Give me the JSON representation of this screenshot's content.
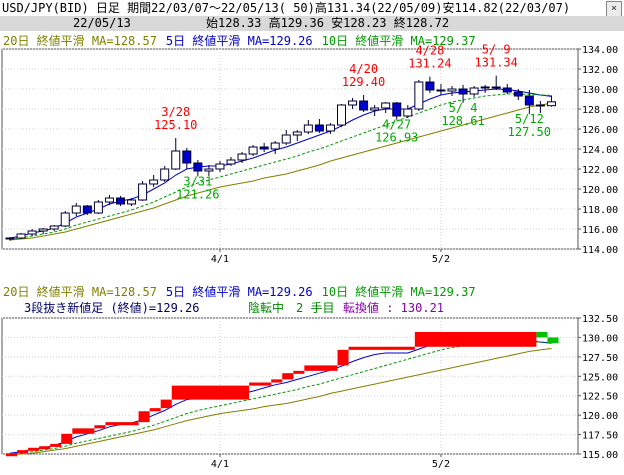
{
  "header": {
    "title": "USD/JPY(BID) 日足 期間22/03/07～22/05/13( 50)高131.34(22/05/09)安114.82(22/03/07)",
    "date": "22/05/13",
    "ohlc": "始128.33 高129.36 安128.23 終128.72",
    "close_button": "×"
  },
  "colors": {
    "up_candle": "#ffffff",
    "down_candle": "#0000cc",
    "ma20": "#808000",
    "ma5": "#0000cc",
    "ma10": "#009900",
    "sanbon_up": "#ff0000",
    "sanbon_down": "#00c000",
    "annotation_high": "#ff0000",
    "annotation_low": "#00aa00"
  },
  "top_chart": {
    "legend": [
      {
        "label": "20日 終値平滑 MA=128.57",
        "color": "#808000"
      },
      {
        "label": "5日 終値平滑 MA=129.26",
        "color": "#0000cc"
      },
      {
        "label": "10日 終値平滑 MA=129.37",
        "color": "#009900"
      }
    ]
  },
  "bottom_chart": {
    "legend": [
      {
        "label": "20日 終値平滑 MA=128.57",
        "color": "#808000"
      },
      {
        "label": "5日 終値平滑 MA=129.26",
        "color": "#0000cc"
      },
      {
        "label": "10日 終値平滑 MA=129.37",
        "color": "#009900"
      }
    ],
    "sanbon_text": "3段抜き新値足 (終値)=129.26",
    "status_turn": "陰転中",
    "status_count": "2 手目",
    "status_price": "転換値 : 130.21"
  },
  "chart_data": [
    {
      "type": "candlestick",
      "title": "USD/JPY(BID) 日足",
      "x_tick_labels": [
        "4/1",
        "5/2"
      ],
      "x_tick_indices": [
        19,
        39
      ],
      "ylim": [
        114,
        134
      ],
      "y_tick_labels": [
        "114.00",
        "116.00",
        "118.00",
        "120.00",
        "122.00",
        "124.00",
        "126.00",
        "128.00",
        "130.00",
        "132.00",
        "134.00"
      ],
      "candles": [
        [
          115.0,
          115.2,
          114.82,
          115.1
        ],
        [
          115.1,
          115.6,
          115.0,
          115.5
        ],
        [
          115.5,
          116.0,
          115.3,
          115.8
        ],
        [
          115.8,
          116.1,
          115.5,
          116.0
        ],
        [
          116.0,
          116.4,
          115.8,
          116.3
        ],
        [
          116.3,
          117.8,
          116.2,
          117.6
        ],
        [
          117.6,
          118.6,
          117.3,
          118.3
        ],
        [
          118.3,
          118.4,
          117.4,
          117.6
        ],
        [
          117.6,
          118.9,
          117.5,
          118.7
        ],
        [
          118.7,
          119.4,
          118.4,
          119.1
        ],
        [
          119.1,
          119.3,
          118.3,
          118.5
        ],
        [
          118.5,
          119.1,
          118.3,
          118.9
        ],
        [
          118.9,
          120.8,
          118.8,
          120.5
        ],
        [
          120.5,
          121.4,
          120.2,
          120.9
        ],
        [
          120.9,
          122.3,
          120.7,
          122.0
        ],
        [
          122.0,
          125.1,
          121.9,
          123.8
        ],
        [
          123.8,
          124.1,
          122.0,
          122.6
        ],
        [
          122.6,
          122.9,
          121.26,
          121.8
        ],
        [
          121.8,
          122.4,
          121.3,
          122.0
        ],
        [
          122.0,
          122.8,
          121.7,
          122.5
        ],
        [
          122.5,
          123.2,
          122.3,
          122.9
        ],
        [
          122.9,
          123.7,
          122.6,
          123.5
        ],
        [
          123.5,
          124.4,
          123.3,
          124.2
        ],
        [
          124.2,
          124.6,
          123.7,
          124.0
        ],
        [
          124.0,
          124.8,
          123.5,
          124.6
        ],
        [
          124.6,
          125.9,
          124.4,
          125.4
        ],
        [
          125.4,
          125.9,
          124.8,
          125.7
        ],
        [
          125.7,
          126.9,
          125.5,
          126.4
        ],
        [
          126.4,
          127.0,
          125.6,
          125.8
        ],
        [
          125.8,
          126.6,
          125.5,
          126.4
        ],
        [
          126.4,
          128.5,
          126.2,
          128.4
        ],
        [
          128.4,
          129.1,
          128.0,
          128.8
        ],
        [
          128.8,
          129.4,
          127.7,
          127.9
        ],
        [
          127.9,
          128.4,
          127.3,
          128.1
        ],
        [
          128.1,
          128.7,
          127.6,
          128.6
        ],
        [
          128.6,
          128.7,
          126.93,
          127.3
        ],
        [
          127.3,
          128.4,
          127.1,
          128.0
        ],
        [
          128.0,
          130.9,
          127.8,
          130.7
        ],
        [
          130.7,
          131.24,
          129.6,
          129.9
        ],
        [
          129.9,
          130.5,
          129.4,
          129.8
        ],
        [
          129.8,
          130.3,
          129.3,
          130.0
        ],
        [
          130.0,
          130.4,
          128.61,
          129.5
        ],
        [
          129.5,
          130.3,
          129.2,
          130.1
        ],
        [
          130.1,
          130.4,
          129.6,
          130.2
        ],
        [
          130.2,
          131.34,
          129.9,
          130.1
        ],
        [
          130.1,
          130.5,
          129.5,
          129.7
        ],
        [
          129.7,
          130.0,
          128.9,
          129.3
        ],
        [
          129.3,
          129.9,
          127.5,
          128.4
        ],
        [
          128.4,
          128.8,
          127.6,
          128.33
        ],
        [
          128.33,
          129.36,
          128.23,
          128.72
        ]
      ],
      "series": [
        {
          "name": "20日 終値平滑",
          "values": [
            114.9,
            115.0,
            115.1,
            115.3,
            115.5,
            115.7,
            116.0,
            116.3,
            116.6,
            116.9,
            117.2,
            117.5,
            117.8,
            118.1,
            118.5,
            118.9,
            119.3,
            119.6,
            119.9,
            120.2,
            120.4,
            120.6,
            120.8,
            121.1,
            121.3,
            121.5,
            121.8,
            122.1,
            122.4,
            122.8,
            123.1,
            123.4,
            123.7,
            124.0,
            124.3,
            124.6,
            124.9,
            125.2,
            125.5,
            125.8,
            126.1,
            126.4,
            126.7,
            127.0,
            127.3,
            127.6,
            127.9,
            128.2,
            128.4,
            128.57
          ]
        },
        {
          "name": "5日 終値平滑",
          "values": [
            115.1,
            115.3,
            115.6,
            115.8,
            116.1,
            116.6,
            117.2,
            117.6,
            118.0,
            118.5,
            118.8,
            119.0,
            119.4,
            120.0,
            120.6,
            121.4,
            122.0,
            122.2,
            122.3,
            122.3,
            122.5,
            122.8,
            123.1,
            123.5,
            123.9,
            124.2,
            124.6,
            125.0,
            125.4,
            125.8,
            126.3,
            126.9,
            127.4,
            127.8,
            128.0,
            128.0,
            128.0,
            128.5,
            129.0,
            129.4,
            129.6,
            129.7,
            129.8,
            129.9,
            130.0,
            129.95,
            129.8,
            129.6,
            129.4,
            129.26
          ]
        },
        {
          "name": "10日 終値平滑",
          "values": [
            115.0,
            115.1,
            115.3,
            115.5,
            115.7,
            116.0,
            116.4,
            116.7,
            117.0,
            117.3,
            117.6,
            117.9,
            118.3,
            118.7,
            119.2,
            119.7,
            120.2,
            120.6,
            120.9,
            121.2,
            121.5,
            121.8,
            122.1,
            122.4,
            122.7,
            123.0,
            123.3,
            123.7,
            124.0,
            124.4,
            124.8,
            125.2,
            125.6,
            126.0,
            126.4,
            126.8,
            127.2,
            127.6,
            128.0,
            128.4,
            128.7,
            128.9,
            129.1,
            129.3,
            129.4,
            129.5,
            129.5,
            129.45,
            129.4,
            129.37
          ]
        }
      ],
      "annotations": [
        {
          "date": "3/28",
          "value": "125.10",
          "kind": "high",
          "index": 15
        },
        {
          "date": "3/31",
          "value": "121.26",
          "kind": "low",
          "index": 17
        },
        {
          "date": "4/20",
          "value": "129.40",
          "kind": "high",
          "index": 32
        },
        {
          "date": "4/27",
          "value": "126.93",
          "kind": "low",
          "index": 35
        },
        {
          "date": "4/28",
          "value": "131.24",
          "kind": "high",
          "index": 38
        },
        {
          "date": "5/ 4",
          "value": "128.61",
          "kind": "low",
          "index": 41
        },
        {
          "date": "5/ 9",
          "value": "131.34",
          "kind": "high",
          "index": 44
        },
        {
          "date": "5/12",
          "value": "127.50",
          "kind": "low",
          "index": 47
        }
      ]
    },
    {
      "type": "sanbon-shinneashi",
      "title": "3段抜き新値足 (終値)",
      "x_tick_labels": [
        "4/1",
        "5/2"
      ],
      "x_tick_indices": [
        19,
        39
      ],
      "ylim": [
        115,
        132.5
      ],
      "y_tick_labels": [
        "115.00",
        "117.50",
        "120.00",
        "122.50",
        "125.00",
        "127.50",
        "130.00",
        "132.50"
      ],
      "bricks": [
        {
          "from": 114.82,
          "to": 115.1,
          "dir": "up",
          "index": 0
        },
        {
          "from": 115.1,
          "to": 115.5,
          "dir": "up",
          "index": 1
        },
        {
          "from": 115.5,
          "to": 115.8,
          "dir": "up",
          "index": 2
        },
        {
          "from": 115.8,
          "to": 116.0,
          "dir": "up",
          "index": 3
        },
        {
          "from": 116.0,
          "to": 116.3,
          "dir": "up",
          "index": 4
        },
        {
          "from": 116.3,
          "to": 117.6,
          "dir": "up",
          "index": 5
        },
        {
          "from": 117.6,
          "to": 118.3,
          "dir": "up",
          "index": 6
        },
        {
          "from": 118.3,
          "to": 118.7,
          "dir": "up",
          "index": 8
        },
        {
          "from": 118.7,
          "to": 119.1,
          "dir": "up",
          "index": 9
        },
        {
          "from": 119.1,
          "to": 120.5,
          "dir": "up",
          "index": 12
        },
        {
          "from": 120.5,
          "to": 120.9,
          "dir": "up",
          "index": 13
        },
        {
          "from": 120.9,
          "to": 122.0,
          "dir": "up",
          "index": 14
        },
        {
          "from": 122.0,
          "to": 123.8,
          "dir": "up",
          "index": 15
        },
        {
          "from": 123.8,
          "to": 124.2,
          "dir": "up",
          "index": 22
        },
        {
          "from": 124.2,
          "to": 124.6,
          "dir": "up",
          "index": 24
        },
        {
          "from": 124.6,
          "to": 125.4,
          "dir": "up",
          "index": 25
        },
        {
          "from": 125.4,
          "to": 125.7,
          "dir": "up",
          "index": 26
        },
        {
          "from": 125.7,
          "to": 126.4,
          "dir": "up",
          "index": 27
        },
        {
          "from": 126.4,
          "to": 128.4,
          "dir": "up",
          "index": 30
        },
        {
          "from": 128.4,
          "to": 128.8,
          "dir": "up",
          "index": 31
        },
        {
          "from": 128.8,
          "to": 130.7,
          "dir": "up",
          "index": 37
        },
        {
          "from": 130.7,
          "to": 130.0,
          "dir": "down",
          "index": 48
        },
        {
          "from": 130.0,
          "to": 129.26,
          "dir": "down",
          "index": 49
        }
      ],
      "series": [
        {
          "name": "20日 終値平滑",
          "values": [
            114.9,
            115.0,
            115.1,
            115.3,
            115.5,
            115.7,
            116.0,
            116.3,
            116.6,
            116.9,
            117.2,
            117.5,
            117.8,
            118.1,
            118.5,
            118.9,
            119.3,
            119.6,
            119.9,
            120.2,
            120.4,
            120.6,
            120.8,
            121.1,
            121.3,
            121.5,
            121.8,
            122.1,
            122.4,
            122.8,
            123.1,
            123.4,
            123.7,
            124.0,
            124.3,
            124.6,
            124.9,
            125.2,
            125.5,
            125.8,
            126.1,
            126.4,
            126.7,
            127.0,
            127.3,
            127.6,
            127.9,
            128.2,
            128.4,
            128.57
          ]
        },
        {
          "name": "5日 終値平滑",
          "values": [
            115.1,
            115.3,
            115.6,
            115.8,
            116.1,
            116.6,
            117.2,
            117.6,
            118.0,
            118.5,
            118.8,
            119.0,
            119.4,
            120.0,
            120.6,
            121.4,
            122.0,
            122.2,
            122.3,
            122.3,
            122.5,
            122.8,
            123.1,
            123.5,
            123.9,
            124.2,
            124.6,
            125.0,
            125.4,
            125.8,
            126.3,
            126.9,
            127.4,
            127.8,
            128.0,
            128.0,
            128.0,
            128.5,
            129.0,
            129.4,
            129.6,
            129.7,
            129.8,
            129.9,
            130.0,
            129.95,
            129.8,
            129.6,
            129.4,
            129.26
          ]
        },
        {
          "name": "10日 終値平滑",
          "values": [
            115.0,
            115.1,
            115.3,
            115.5,
            115.7,
            116.0,
            116.4,
            116.7,
            117.0,
            117.3,
            117.6,
            117.9,
            118.3,
            118.7,
            119.2,
            119.7,
            120.2,
            120.6,
            120.9,
            121.2,
            121.5,
            121.8,
            122.1,
            122.4,
            122.7,
            123.0,
            123.3,
            123.7,
            124.0,
            124.4,
            124.8,
            125.2,
            125.6,
            126.0,
            126.4,
            126.8,
            127.2,
            127.6,
            128.0,
            128.4,
            128.7,
            128.9,
            129.1,
            129.3,
            129.4,
            129.5,
            129.5,
            129.45,
            129.4,
            129.37
          ]
        }
      ]
    }
  ]
}
